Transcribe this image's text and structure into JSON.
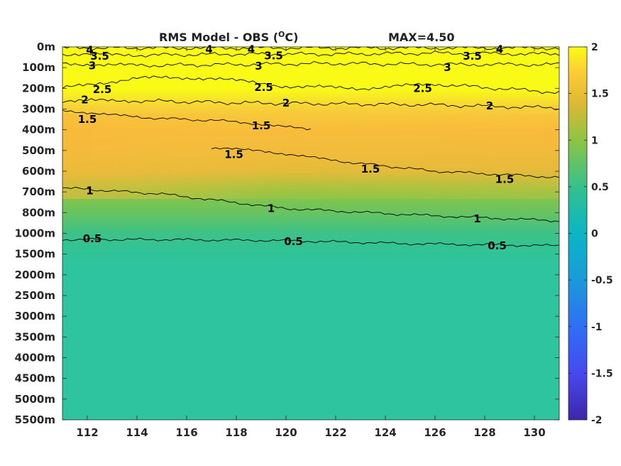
{
  "chart_data": {
    "type": "heatmap",
    "title": "RMS Model - OBS (",
    "title_unit_sup": "O",
    "title_unit_tail": "C)",
    "max_label": "MAX=4.50",
    "x_ticks": [
      "112",
      "114",
      "116",
      "118",
      "120",
      "122",
      "124",
      "126",
      "128",
      "130"
    ],
    "x_tick_values": [
      112,
      114,
      116,
      118,
      120,
      122,
      124,
      126,
      128,
      130
    ],
    "xlim": [
      111,
      131
    ],
    "y_ticks": [
      "0m",
      "100m",
      "200m",
      "300m",
      "400m",
      "500m",
      "600m",
      "700m",
      "800m",
      "1000m",
      "1500m",
      "2000m",
      "2500m",
      "3000m",
      "3500m",
      "4000m",
      "4500m",
      "5000m",
      "5500m"
    ],
    "colorbar": {
      "ticks": [
        "2",
        "1.5",
        "1",
        "0.5",
        "0",
        "-0.5",
        "-1",
        "-1.5",
        "-2"
      ],
      "tick_values": [
        2,
        1.5,
        1,
        0.5,
        0,
        -0.5,
        -1,
        -1.5,
        -2
      ],
      "range": [
        -2,
        2
      ]
    },
    "depth_profile": [
      {
        "level": 0,
        "value": 4.5
      },
      {
        "level": 1,
        "value": 3.0
      },
      {
        "level": 2,
        "value": 2.3
      },
      {
        "level": 3,
        "value": 1.7
      },
      {
        "level": 4,
        "value": 1.5
      },
      {
        "level": 5,
        "value": 1.45
      },
      {
        "level": 6,
        "value": 1.35
      },
      {
        "level": 7,
        "value": 1.0
      },
      {
        "level": 8,
        "value": 0.8
      },
      {
        "level": 9,
        "value": 0.55
      },
      {
        "level": 10,
        "value": 0.4
      },
      {
        "level": 11,
        "value": 0.35
      },
      {
        "level": 12,
        "value": 0.35
      },
      {
        "level": 18,
        "value": 0.35
      }
    ],
    "contours": [
      {
        "value": 4,
        "points": [
          [
            111,
            0.05
          ],
          [
            115,
            0.05
          ],
          [
            120,
            0.05
          ],
          [
            125,
            0.05
          ],
          [
            131,
            0.05
          ]
        ],
        "labels": [
          {
            "text": "4",
            "x": 112.1,
            "level": 0.15
          },
          {
            "text": "4",
            "x": 116.9,
            "level": 0.12
          },
          {
            "text": "4",
            "x": 118.6,
            "level": 0.12
          },
          {
            "text": "4",
            "x": 128.6,
            "level": 0.12
          }
        ]
      },
      {
        "value": 3.5,
        "points": [
          [
            111,
            0.35
          ],
          [
            114,
            0.4
          ],
          [
            118,
            0.35
          ],
          [
            122,
            0.35
          ],
          [
            126,
            0.3
          ],
          [
            131,
            0.35
          ]
        ],
        "labels": [
          {
            "text": "3.5",
            "x": 112.5,
            "level": 0.45
          },
          {
            "text": "3.5",
            "x": 119.5,
            "level": 0.42
          },
          {
            "text": "3.5",
            "x": 127.5,
            "level": 0.45
          }
        ]
      },
      {
        "value": 3,
        "points": [
          [
            111,
            0.8
          ],
          [
            114,
            0.9
          ],
          [
            118,
            0.85
          ],
          [
            122,
            0.8
          ],
          [
            126,
            0.85
          ],
          [
            131,
            0.85
          ]
        ],
        "labels": [
          {
            "text": "3",
            "x": 112.2,
            "level": 0.9
          },
          {
            "text": "3",
            "x": 118.9,
            "level": 0.92
          },
          {
            "text": "3",
            "x": 126.5,
            "level": 1.0
          }
        ]
      },
      {
        "value": 2.5,
        "points": [
          [
            111,
            2.0
          ],
          [
            114,
            1.5
          ],
          [
            117,
            1.5
          ],
          [
            120,
            1.9
          ],
          [
            123,
            2.0
          ],
          [
            126,
            1.8
          ],
          [
            131,
            2.2
          ]
        ],
        "labels": [
          {
            "text": "2.5",
            "x": 112.6,
            "level": 2.05
          },
          {
            "text": "2.5",
            "x": 119.1,
            "level": 1.95
          },
          {
            "text": "2.5",
            "x": 125.5,
            "level": 2.0
          }
        ]
      },
      {
        "value": 2,
        "points": [
          [
            111,
            2.6
          ],
          [
            114,
            2.6
          ],
          [
            118,
            2.7
          ],
          [
            122,
            2.75
          ],
          [
            126,
            2.8
          ],
          [
            131,
            2.95
          ]
        ],
        "labels": [
          {
            "text": "2",
            "x": 111.9,
            "level": 2.55
          },
          {
            "text": "2",
            "x": 120.0,
            "level": 2.7
          },
          {
            "text": "2",
            "x": 128.2,
            "level": 2.85
          }
        ]
      },
      {
        "value": 1.5,
        "points": [
          [
            111,
            3.05
          ],
          [
            114,
            3.4
          ],
          [
            118,
            3.6
          ],
          [
            121,
            4.0
          ]
        ],
        "labels": [
          {
            "text": "1.5",
            "x": 112.0,
            "level": 3.5
          },
          {
            "text": "1.5",
            "x": 119.0,
            "level": 3.8
          }
        ]
      },
      {
        "value": 1.5,
        "points": [
          [
            117,
            4.9
          ],
          [
            119,
            5.0
          ],
          [
            122,
            5.5
          ],
          [
            126,
            6.0
          ],
          [
            131,
            6.3
          ]
        ],
        "labels": [
          {
            "text": "1.5",
            "x": 117.9,
            "level": 5.2
          },
          {
            "text": "1.5",
            "x": 123.4,
            "level": 5.9
          },
          {
            "text": "1.5",
            "x": 128.8,
            "level": 6.4
          }
        ]
      },
      {
        "value": 1,
        "points": [
          [
            111,
            6.8
          ],
          [
            115,
            7.1
          ],
          [
            120,
            7.8
          ],
          [
            125,
            8.1
          ],
          [
            131,
            8.4
          ]
        ],
        "labels": [
          {
            "text": "1",
            "x": 112.1,
            "level": 6.95
          },
          {
            "text": "1",
            "x": 119.4,
            "level": 7.8
          },
          {
            "text": "1",
            "x": 127.7,
            "level": 8.3
          }
        ]
      },
      {
        "value": 0.5,
        "points": [
          [
            111,
            9.3
          ],
          [
            115,
            9.3
          ],
          [
            120,
            9.35
          ],
          [
            125,
            9.5
          ],
          [
            131,
            9.6
          ]
        ],
        "labels": [
          {
            "text": "0.5",
            "x": 112.2,
            "level": 9.25
          },
          {
            "text": "0.5",
            "x": 120.3,
            "level": 9.4
          },
          {
            "text": "0.5",
            "x": 128.5,
            "level": 9.6
          }
        ]
      }
    ]
  }
}
